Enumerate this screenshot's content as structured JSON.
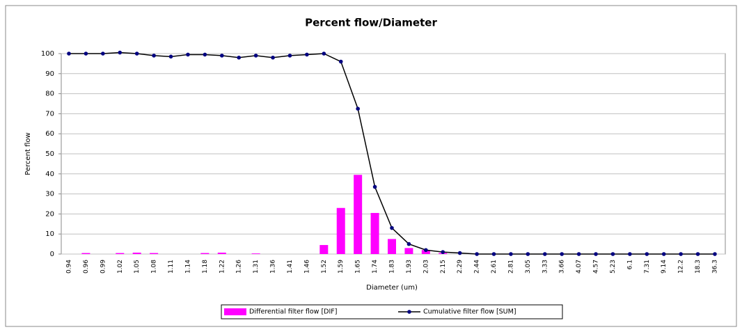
{
  "chart_data": {
    "type": "bar",
    "title": "Percent flow/Diameter",
    "x_label": "Diameter (um)",
    "y_label": "Percent flow",
    "categories": [
      "0.94",
      "0.96",
      "0.99",
      "1.02",
      "1.05",
      "1.08",
      "1.11",
      "1.14",
      "1.18",
      "1.22",
      "1.26",
      "1.31",
      "1.36",
      "1.41",
      "1.46",
      "1.52",
      "1.59",
      "1.65",
      "1.74",
      "1.83",
      "1.93",
      "2.03",
      "2.15",
      "2.29",
      "2.44",
      "2.61",
      "2.81",
      "3.05",
      "3.33",
      "3.66",
      "4.07",
      "4.57",
      "5.23",
      "6.1",
      "7.31",
      "9.14",
      "12.2",
      "18.3",
      "36.3"
    ],
    "series": [
      {
        "name": "Differential filter flow [DIF]",
        "type": "bar",
        "color": "#ff00ff",
        "values": [
          0,
          0.5,
          0,
          0.5,
          0.7,
          0.5,
          0,
          0,
          0.5,
          0.7,
          0,
          0.3,
          0,
          0,
          0,
          4.5,
          23,
          39.5,
          20.5,
          7.5,
          3,
          2,
          0.5,
          0,
          0,
          0,
          0,
          0,
          0,
          0,
          0,
          0,
          0,
          0,
          0,
          0,
          0,
          0,
          0
        ]
      },
      {
        "name": "Cumulative filter flow [SUM]",
        "type": "line",
        "color": "#000000",
        "marker_color": "#000080",
        "values": [
          100,
          100,
          100,
          100.5,
          100,
          99,
          98.5,
          99.5,
          99.5,
          99,
          98,
          99,
          98,
          99,
          99.5,
          100,
          96,
          72.5,
          33.5,
          13,
          5,
          2,
          1,
          0.5,
          0,
          0,
          0,
          0,
          0,
          0,
          0,
          0,
          0,
          0,
          0,
          0,
          0,
          0,
          0
        ]
      }
    ],
    "ylim": [
      0,
      100
    ],
    "yticks": [
      0,
      10,
      20,
      30,
      40,
      50,
      60,
      70,
      80,
      90,
      100
    ],
    "grid": true
  }
}
